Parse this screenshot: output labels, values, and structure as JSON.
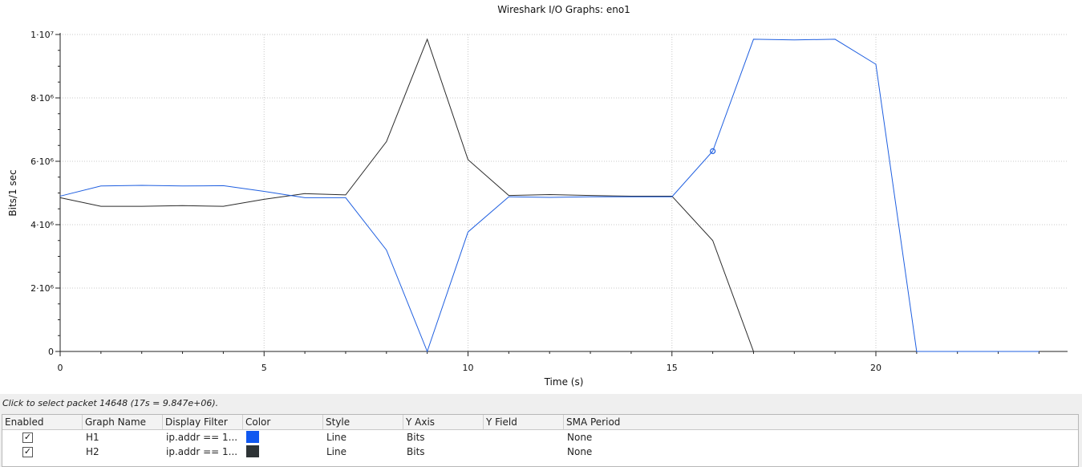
{
  "status_text": "Click to select packet 14648 (17s = 9.847e+06).",
  "chart_data": {
    "type": "line",
    "title": "Wireshark I/O Graphs: eno1",
    "xlabel": "Time (s)",
    "ylabel": "Bits/1 sec",
    "xlim": [
      0,
      24.7
    ],
    "ylim": [
      0,
      10000000
    ],
    "x_ticks": [
      "0",
      "5",
      "10",
      "15",
      "20"
    ],
    "x_tick_values": [
      0,
      5,
      10,
      15,
      20
    ],
    "y_ticks": [
      "0",
      "2·10⁶",
      "4·10⁶",
      "6·10⁶",
      "8·10⁶",
      "1·10⁷"
    ],
    "y_tick_values": [
      0,
      2000000,
      4000000,
      6000000,
      8000000,
      10000000
    ],
    "grid": true,
    "series": [
      {
        "name": "H1",
        "color": "#1f5fe0",
        "x": [
          0,
          1,
          2,
          3,
          4,
          5,
          6,
          7,
          8,
          9,
          10,
          11,
          12,
          13,
          14,
          15,
          16,
          17,
          18,
          19,
          20,
          21,
          22,
          23,
          24
        ],
        "values": [
          4900000,
          5220000,
          5240000,
          5220000,
          5230000,
          5050000,
          4850000,
          4850000,
          3200000,
          0,
          3770000,
          4880000,
          4860000,
          4880000,
          4880000,
          4880000,
          6320000,
          9850000,
          9830000,
          9850000,
          9060000,
          0,
          0,
          0,
          0
        ],
        "marker_at_x": 16
      },
      {
        "name": "H2",
        "color": "#2b2b2b",
        "x": [
          0,
          1,
          2,
          3,
          4,
          5,
          6,
          7,
          8,
          9,
          10,
          11,
          12,
          13,
          14,
          15,
          16,
          17,
          18,
          19,
          20
        ],
        "values": [
          4850000,
          4580000,
          4580000,
          4600000,
          4580000,
          4800000,
          4980000,
          4940000,
          6620000,
          9850000,
          6050000,
          4920000,
          4950000,
          4920000,
          4900000,
          4900000,
          3500000,
          0,
          0,
          0,
          0
        ]
      }
    ]
  },
  "table": {
    "headers": [
      "Enabled",
      "Graph Name",
      "Display Filter",
      "Color",
      "Style",
      "Y Axis",
      "Y Field",
      "SMA Period"
    ],
    "rows": [
      {
        "enabled": "✓",
        "name": "H1",
        "filter": "ip.addr == 1...",
        "color": "#1058f0",
        "style": "Line",
        "y_axis": "Bits",
        "y_field": "",
        "sma": "None"
      },
      {
        "enabled": "✓",
        "name": "H2",
        "filter": "ip.addr == 1...",
        "color": "#2e3436",
        "style": "Line",
        "y_axis": "Bits",
        "y_field": "",
        "sma": "None"
      }
    ]
  }
}
